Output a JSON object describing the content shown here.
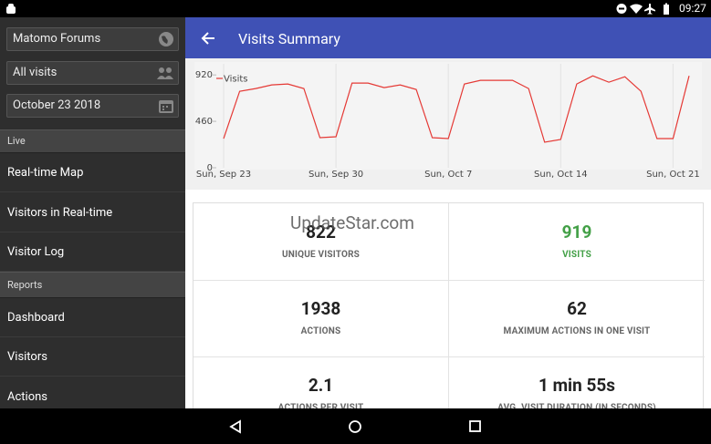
{
  "status_bar": {
    "time": "09:27"
  },
  "sidebar": {
    "fields": [
      "Matomo Forums",
      "All visits",
      "October 23 2018"
    ],
    "sections": [
      {
        "title": "Live",
        "items": [
          "Real-time Map",
          "Visitors in Real-time",
          "Visitor Log"
        ]
      },
      {
        "title": "Reports",
        "items": [
          "Dashboard",
          "Visitors",
          "Actions"
        ]
      }
    ]
  },
  "header": {
    "title": "Visits Summary"
  },
  "chart_data": {
    "type": "line",
    "categories": [
      "Sun, Sep 23",
      null,
      null,
      null,
      null,
      null,
      null,
      "Sun, Sep 30",
      null,
      null,
      null,
      null,
      null,
      null,
      "Sun, Oct 7",
      null,
      null,
      null,
      null,
      null,
      null,
      "Sun, Oct 14",
      null,
      null,
      null,
      null,
      null,
      null,
      "Sun, Oct 21",
      null
    ],
    "series": [
      {
        "name": "Visits",
        "color": "#e53935",
        "values": [
          289,
          758,
          785,
          821,
          830,
          785,
          298,
          307,
          839,
          839,
          794,
          821,
          776,
          298,
          289,
          830,
          866,
          866,
          866,
          785,
          253,
          280,
          830,
          911,
          848,
          902,
          758,
          289,
          289,
          911
        ]
      }
    ],
    "ylim": [
      0,
      1030
    ],
    "yticks": [
      0,
      460,
      920
    ],
    "legend": "top-left"
  },
  "metrics": [
    {
      "value": 822,
      "label": "UNIQUE VISITORS"
    },
    {
      "value": 919,
      "label": "VISITS"
    },
    {
      "value": 1938,
      "label": "ACTIONS"
    },
    {
      "value": 62,
      "label": "MAXIMUM ACTIONS IN ONE VISIT"
    },
    {
      "value": 2.1,
      "label": "ACTIONS PER VISIT"
    },
    {
      "value": "1 min 55s",
      "label": "AVG. VISIT DURATION (IN SECONDS)"
    }
  ],
  "watermark": "UpdateStar.com"
}
